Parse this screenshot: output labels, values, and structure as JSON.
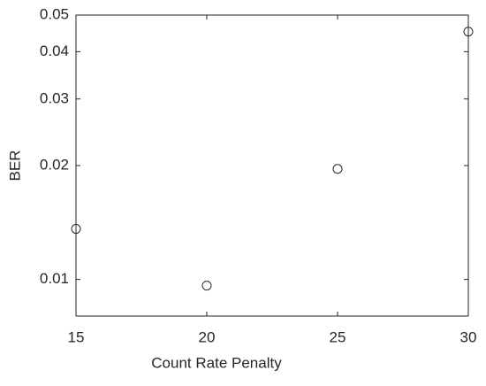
{
  "chart_data": {
    "type": "scatter",
    "xlabel": "Count Rate Penalty",
    "ylabel": "BER",
    "x": [
      15,
      20,
      25,
      30
    ],
    "values": [
      0.0136,
      0.00963,
      0.0196,
      0.0452
    ],
    "color": "#262626",
    "yscale": "log",
    "xlim": [
      15,
      30
    ],
    "xticks": [
      15,
      20,
      25,
      30
    ],
    "ylim": [
      0.008,
      0.05
    ],
    "yticks": [
      0.01,
      0.02,
      0.03,
      0.04,
      0.05
    ],
    "grid": false
  }
}
